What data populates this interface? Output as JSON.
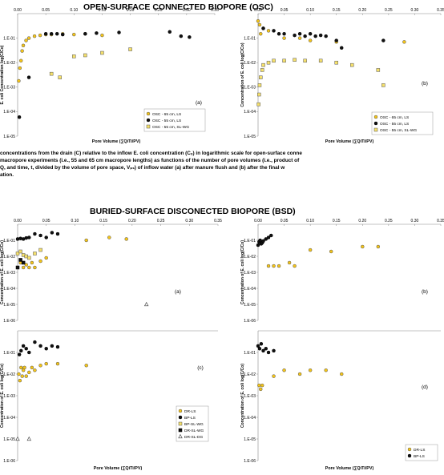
{
  "titles": {
    "osc": "OPEN-SURFACE CONNECTED BIOPORE (OSC)",
    "bsd": "BURIED-SURFACE DISCONECTED BIOPORE (BSD)"
  },
  "caption": {
    "line1": "concentrations from the drain (C) relative to the inflow E. coli concentration (Cₒ) in logarithmic scale for open-surface conne",
    "line2": "macropore experiments (i.e., 55 and 65 cm macropore lengths) as functions of the number of pore volumes (i.e., product of",
    "line3": "Q, and time, t, divided by the volume of pore space, Vₚₛ) of inflow water (a) after manure flush and (b) after the final w",
    "line4": "ation."
  },
  "colors": {
    "ls65": "#f5c518",
    "ls55": "#111111",
    "slwg": "#f5e06b",
    "marker_edge": "#555555"
  },
  "chart_data": [
    {
      "id": "osc-a",
      "type": "scatter",
      "panel_label": "(a)",
      "xlabel": "Pore Volume (∑QiTi/PV)",
      "ylabel": "E. coli Concentration log(C/Co)",
      "xlim": [
        0,
        0.35
      ],
      "ylim_log": [
        -5,
        0
      ],
      "xticks": [
        "0.00",
        "0.05",
        "0.10",
        "0.15",
        "0.20",
        "0.25",
        "0.30",
        "0.35"
      ],
      "yticks": [
        "1.E-05",
        "1.E-04",
        "1.E-03",
        "1.E-02",
        "1.E-01"
      ],
      "show_xticks": true,
      "show_xlabel": true,
      "legend_position": "bottom-right",
      "series": [
        {
          "name": "OSC - 65 cm, LS",
          "marker": "circle",
          "color": "#f5c518",
          "x": [
            0.002,
            0.004,
            0.006,
            0.008,
            0.01,
            0.015,
            0.02,
            0.03,
            0.04,
            0.05,
            0.06,
            0.08,
            0.1,
            0.12,
            0.15
          ],
          "y": [
            0.0018,
            0.006,
            0.012,
            0.03,
            0.05,
            0.08,
            0.1,
            0.12,
            0.13,
            0.14,
            0.14,
            0.15,
            0.14,
            0.15,
            0.13
          ]
        },
        {
          "name": "OSC - 55 cm, LS",
          "marker": "circle",
          "color": "#111111",
          "x": [
            0.003,
            0.02,
            0.05,
            0.06,
            0.07,
            0.08,
            0.12,
            0.14,
            0.18,
            0.27,
            0.29,
            0.305
          ],
          "y": [
            6e-05,
            0.0025,
            0.15,
            0.15,
            0.15,
            0.14,
            0.15,
            0.16,
            0.17,
            0.18,
            0.12,
            0.11
          ]
        },
        {
          "name": "OSC - 55 cm, SL-WG",
          "marker": "square",
          "color": "#f5e06b",
          "x": [
            0.06,
            0.075,
            0.1,
            0.12,
            0.15,
            0.2
          ],
          "y": [
            0.0035,
            0.0025,
            0.018,
            0.02,
            0.025,
            0.035
          ]
        }
      ]
    },
    {
      "id": "osc-b",
      "type": "scatter",
      "panel_label": "(b)",
      "xlabel": "Pore Volume (∑QiTi/PV)",
      "ylabel": "Concentration of E. coli log(C/Co)",
      "xlim": [
        0,
        0.35
      ],
      "ylim_log": [
        -5,
        0
      ],
      "xticks": [
        "0.00",
        "0.05",
        "0.10",
        "0.15",
        "0.20",
        "0.25",
        "0.30",
        "0.35"
      ],
      "yticks": [
        "1.E-05",
        "1.E-04",
        "1.E-03",
        "1.E-02",
        "1.E-01"
      ],
      "show_xticks": true,
      "show_xlabel": true,
      "legend_position": "bottom-right",
      "series": [
        {
          "name": "OSC - 65 cm, LS",
          "marker": "circle",
          "color": "#f5c518",
          "x": [
            0.0,
            0.003,
            0.005,
            0.01,
            0.02,
            0.05,
            0.08,
            0.1,
            0.15,
            0.28
          ],
          "y": [
            0.5,
            0.35,
            0.15,
            0.25,
            0.2,
            0.1,
            0.1,
            0.08,
            0.07,
            0.07
          ]
        },
        {
          "name": "OSC - 55 cm, LS",
          "marker": "circle",
          "color": "#111111",
          "x": [
            0.01,
            0.03,
            0.04,
            0.05,
            0.07,
            0.08,
            0.09,
            0.1,
            0.11,
            0.12,
            0.13,
            0.15,
            0.16,
            0.24
          ],
          "y": [
            0.25,
            0.2,
            0.15,
            0.15,
            0.13,
            0.15,
            0.12,
            0.15,
            0.12,
            0.13,
            0.12,
            0.08,
            0.04,
            0.08
          ]
        },
        {
          "name": "OSC - 55 cm, SL-WG",
          "marker": "square",
          "color": "#f5e06b",
          "x": [
            0.001,
            0.002,
            0.003,
            0.005,
            0.008,
            0.01,
            0.02,
            0.03,
            0.05,
            0.07,
            0.09,
            0.12,
            0.15,
            0.18,
            0.23,
            0.24
          ],
          "y": [
            0.0002,
            0.0005,
            0.0012,
            0.0025,
            0.005,
            0.008,
            0.01,
            0.012,
            0.012,
            0.013,
            0.012,
            0.012,
            0.01,
            0.008,
            0.005,
            0.0012
          ]
        }
      ]
    },
    {
      "id": "bsd-a",
      "type": "scatter",
      "panel_label": "(a)",
      "xlabel": "",
      "ylabel": "Concentration of E. coli log(C/Co)",
      "xlim": [
        0,
        0.35
      ],
      "ylim_log": [
        -6,
        0
      ],
      "xticks": [
        "0.00",
        "0.05",
        "0.10",
        "0.15",
        "0.20",
        "0.25",
        "0.30",
        "0.35"
      ],
      "yticks": [
        "1.E-06",
        "1.E-05",
        "1.E-04",
        "1.E-03",
        "1.E-02",
        "1.E-01"
      ],
      "show_xticks": true,
      "show_xlabel": false,
      "legend_position": "none",
      "series": [
        {
          "name": "DR-LS",
          "marker": "circle",
          "color": "#f5c518",
          "x": [
            0.005,
            0.01,
            0.015,
            0.02,
            0.025,
            0.03,
            0.04,
            0.05,
            0.12,
            0.16,
            0.19
          ],
          "y": [
            0.004,
            0.002,
            0.003,
            0.002,
            0.004,
            0.002,
            0.005,
            0.008,
            0.1,
            0.15,
            0.12
          ]
        },
        {
          "name": "BP-LS",
          "marker": "circle",
          "color": "#111111",
          "x": [
            0.0,
            0.005,
            0.01,
            0.015,
            0.02,
            0.03,
            0.04,
            0.05,
            0.06,
            0.07
          ],
          "y": [
            0.12,
            0.13,
            0.12,
            0.14,
            0.15,
            0.25,
            0.2,
            0.15,
            0.3,
            0.25
          ]
        },
        {
          "name": "BP-SL-WG",
          "marker": "square",
          "color": "#f5e06b",
          "x": [
            0.0,
            0.005,
            0.01,
            0.015,
            0.02,
            0.03,
            0.04
          ],
          "y": [
            0.015,
            0.02,
            0.012,
            0.01,
            0.008,
            0.015,
            0.025
          ]
        },
        {
          "name": "DR-SL-WG",
          "marker": "square",
          "color": "#111111",
          "x": [
            0.0,
            0.005,
            0.01
          ],
          "y": [
            0.002,
            0.006,
            0.004
          ]
        },
        {
          "name": "DR-SL-DG",
          "marker": "triangle",
          "color": "#ffffff",
          "x": [
            0.225
          ],
          "y": [
            1e-05
          ]
        }
      ]
    },
    {
      "id": "bsd-b",
      "type": "scatter",
      "panel_label": "(b)",
      "xlabel": "",
      "ylabel": "Concentration of E. coli log(C/Co)",
      "xlim": [
        0,
        0.35
      ],
      "ylim_log": [
        -6,
        0
      ],
      "xticks": [
        "0.00",
        "0.05",
        "0.10",
        "0.15",
        "0.20",
        "0.25",
        "0.30",
        "0.35"
      ],
      "yticks": [
        "1.E-06",
        "1.E-05",
        "1.E-04",
        "1.E-03",
        "1.E-02",
        "1.E-01"
      ],
      "show_xticks": true,
      "show_xlabel": false,
      "legend_position": "none",
      "series": [
        {
          "name": "DR-LS",
          "marker": "circle",
          "color": "#f5c518",
          "x": [
            0.02,
            0.03,
            0.04,
            0.06,
            0.07,
            0.1,
            0.14,
            0.2,
            0.23
          ],
          "y": [
            0.0025,
            0.0025,
            0.0025,
            0.004,
            0.0025,
            0.025,
            0.02,
            0.04,
            0.04
          ]
        },
        {
          "name": "BP-LS",
          "marker": "circle",
          "color": "#111111",
          "x": [
            0.0,
            0.002,
            0.004,
            0.006,
            0.008,
            0.01,
            0.015,
            0.02,
            0.025
          ],
          "y": [
            0.05,
            0.08,
            0.1,
            0.06,
            0.07,
            0.09,
            0.12,
            0.15,
            0.2
          ]
        }
      ]
    },
    {
      "id": "bsd-c",
      "type": "scatter",
      "panel_label": "(c)",
      "xlabel": "Pore Volume (∑QiTi/PV)",
      "ylabel": "Concentration of E. coli log(C/Co)",
      "xlim": [
        0,
        0.35
      ],
      "ylim_log": [
        -6,
        0
      ],
      "xticks": [
        "0.00",
        "0.05",
        "0.10",
        "0.15",
        "0.20",
        "0.25",
        "0.30",
        "0.35"
      ],
      "yticks": [
        "1.E-06",
        "1.E-05",
        "1.E-04",
        "1.E-03",
        "1.E-02",
        "1.E-01"
      ],
      "show_xticks": false,
      "show_xlabel": true,
      "legend_position": "bottom-right",
      "series": [
        {
          "name": "DR-LS",
          "marker": "circle",
          "color": "#f5c518",
          "x": [
            0.002,
            0.004,
            0.006,
            0.008,
            0.01,
            0.012,
            0.015,
            0.02,
            0.025,
            0.03,
            0.04,
            0.05,
            0.07,
            0.12
          ],
          "y": [
            0.01,
            0.005,
            0.02,
            0.008,
            0.015,
            0.02,
            0.008,
            0.012,
            0.02,
            0.015,
            0.025,
            0.03,
            0.03,
            0.025
          ]
        },
        {
          "name": "BP-LS",
          "marker": "circle",
          "color": "#111111",
          "x": [
            0.003,
            0.006,
            0.01,
            0.015,
            0.02,
            0.03,
            0.04,
            0.05,
            0.06,
            0.07
          ],
          "y": [
            0.08,
            0.12,
            0.2,
            0.15,
            0.1,
            0.3,
            0.2,
            0.15,
            0.2,
            0.18
          ]
        },
        {
          "name": "BP-SL-WG",
          "marker": "square",
          "color": "#f5e06b",
          "x": [],
          "y": []
        },
        {
          "name": "DR-SL-WG",
          "marker": "square",
          "color": "#111111",
          "x": [],
          "y": []
        },
        {
          "name": "DR-SL-DG",
          "marker": "triangle",
          "color": "#ffffff",
          "x": [
            0.0,
            0.02
          ],
          "y": [
            1e-05,
            1e-05
          ]
        }
      ]
    },
    {
      "id": "bsd-d",
      "type": "scatter",
      "panel_label": "(d)",
      "xlabel": "Pore Volume (∑QiTi/PV)",
      "ylabel": "Concentration of E. coli log(C/Co)",
      "xlim": [
        0,
        0.35
      ],
      "ylim_log": [
        -6,
        0
      ],
      "xticks": [
        "0.00",
        "0.05",
        "0.10",
        "0.15",
        "0.20",
        "0.25",
        "0.30",
        "0.35"
      ],
      "yticks": [
        "1.E-06",
        "1.E-05",
        "1.E-04",
        "1.E-03",
        "1.E-02",
        "1.E-01"
      ],
      "show_xticks": false,
      "show_xlabel": true,
      "legend_position": "bottom-right",
      "series": [
        {
          "name": "DR-LS",
          "marker": "circle",
          "color": "#f5c518",
          "x": [
            0.002,
            0.005,
            0.008,
            0.03,
            0.05,
            0.08,
            0.1,
            0.13,
            0.16
          ],
          "y": [
            0.003,
            0.002,
            0.003,
            0.008,
            0.015,
            0.01,
            0.015,
            0.015,
            0.01
          ]
        },
        {
          "name": "BP-LS",
          "marker": "circle",
          "color": "#111111",
          "x": [
            0.0,
            0.003,
            0.006,
            0.01,
            0.015,
            0.02,
            0.03
          ],
          "y": [
            0.2,
            0.15,
            0.25,
            0.12,
            0.15,
            0.1,
            0.12
          ]
        }
      ]
    }
  ]
}
